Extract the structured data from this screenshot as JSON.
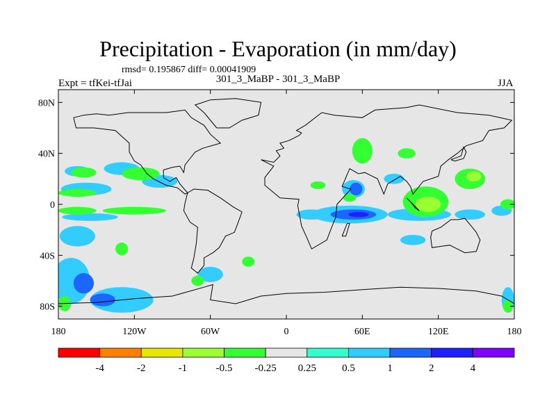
{
  "title": "Precipitation - Evaporation (in mm/day)",
  "stats_text": "rmsd= 0.195867 diff= 0.00041909",
  "subtitle": "301_3_MaBP - 301_3_MaBP",
  "experiment": "Expt = tfKei-tfJai",
  "season": "JJA",
  "chart_data": {
    "type": "heatmap",
    "title": "Precipitation - Evaporation (in mm/day)",
    "x_axis": {
      "range": [
        -180,
        180
      ],
      "ticks": [
        -180,
        -120,
        -60,
        0,
        60,
        120,
        180
      ],
      "tick_labels": [
        "180",
        "120W",
        "60W",
        "0",
        "60E",
        "120E",
        "180"
      ]
    },
    "y_axis": {
      "range": [
        -90,
        90
      ],
      "ticks": [
        80,
        40,
        0,
        -40,
        -80
      ],
      "tick_labels": [
        "80N",
        "40N",
        "0",
        "40S",
        "80S"
      ]
    },
    "colorbar": {
      "labels": [
        "-4",
        "-2",
        "-1",
        "-0.5",
        "-0.25",
        "0.25",
        "0.5",
        "1",
        "2",
        "4"
      ],
      "colors": [
        "#ff0000",
        "#ff8000",
        "#e6e600",
        "#99ff33",
        "#33ff33",
        "#e6e6e6",
        "#33ffcc",
        "#33ccff",
        "#1a66ff",
        "#2020ff",
        "#8000ff"
      ]
    },
    "background_color": "#e6e6e6",
    "anomalies": [
      {
        "lon": -158,
        "lat": 12,
        "rlon": 20,
        "rlat": 5,
        "level": "0.5"
      },
      {
        "lon": -100,
        "lat": 18,
        "rlon": 14,
        "rlat": 5,
        "level": "0.5"
      },
      {
        "lon": -130,
        "lat": 28,
        "rlon": 14,
        "rlat": 5,
        "level": "0.5"
      },
      {
        "lon": -165,
        "lat": 26,
        "rlon": 10,
        "rlat": 4,
        "level": "0.5"
      },
      {
        "lon": -155,
        "lat": -10,
        "rlon": 22,
        "rlat": 3,
        "level": "0.5"
      },
      {
        "lon": -165,
        "lat": -25,
        "rlon": 14,
        "rlat": 8,
        "level": "0.5"
      },
      {
        "lon": -170,
        "lat": -60,
        "rlon": 15,
        "rlat": 18,
        "level": "0.5"
      },
      {
        "lon": -130,
        "lat": -75,
        "rlon": 25,
        "rlat": 10,
        "level": "0.5"
      },
      {
        "lon": -60,
        "lat": -55,
        "rlon": 10,
        "rlat": 6,
        "level": "0.5"
      },
      {
        "lon": 50,
        "lat": -8,
        "rlon": 30,
        "rlat": 7,
        "level": "0.5"
      },
      {
        "lon": 20,
        "lat": -8,
        "rlon": 12,
        "rlat": 4,
        "level": "0.5"
      },
      {
        "lon": 53,
        "lat": 12,
        "rlon": 9,
        "rlat": 7,
        "level": "0.5"
      },
      {
        "lon": 105,
        "lat": -8,
        "rlon": 25,
        "rlat": 5,
        "level": "0.5"
      },
      {
        "lon": 145,
        "lat": -8,
        "rlon": 12,
        "rlat": 4,
        "level": "0.5"
      },
      {
        "lon": 170,
        "lat": -5,
        "rlon": 8,
        "rlat": 4,
        "level": "0.5"
      },
      {
        "lon": 100,
        "lat": -28,
        "rlon": 10,
        "rlat": 4,
        "level": "0.5"
      },
      {
        "lon": 85,
        "lat": 20,
        "rlon": 8,
        "rlat": 4,
        "level": "0.5"
      },
      {
        "lon": 175,
        "lat": -75,
        "rlon": 5,
        "rlat": 10,
        "level": "0.5"
      },
      {
        "lon": -160,
        "lat": -62,
        "rlon": 8,
        "rlat": 8,
        "level": "1"
      },
      {
        "lon": -145,
        "lat": -75,
        "rlon": 10,
        "rlat": 5,
        "level": "1"
      },
      {
        "lon": 53,
        "lat": -8,
        "rlon": 18,
        "rlat": 4,
        "level": "1"
      },
      {
        "lon": 55,
        "lat": 12,
        "rlon": 5,
        "rlat": 5,
        "level": "1"
      },
      {
        "lon": 57,
        "lat": -8,
        "rlon": 8,
        "rlat": 2,
        "level": "2"
      },
      {
        "lon": -165,
        "lat": 9,
        "rlon": 15,
        "rlat": 3,
        "level": "-0.25"
      },
      {
        "lon": -115,
        "lat": 24,
        "rlon": 15,
        "rlat": 5,
        "level": "-0.25"
      },
      {
        "lon": -160,
        "lat": 25,
        "rlon": 10,
        "rlat": 4,
        "level": "-0.25"
      },
      {
        "lon": -120,
        "lat": -5,
        "rlon": 25,
        "rlat": 3,
        "level": "-0.25"
      },
      {
        "lon": -165,
        "lat": -5,
        "rlon": 15,
        "rlat": 3,
        "level": "-0.25"
      },
      {
        "lon": -130,
        "lat": -35,
        "rlon": 5,
        "rlat": 5,
        "level": "-0.25"
      },
      {
        "lon": -175,
        "lat": -78,
        "rlon": 5,
        "rlat": 6,
        "level": "-0.25"
      },
      {
        "lon": -30,
        "lat": -45,
        "rlon": 5,
        "rlat": 4,
        "level": "-0.25"
      },
      {
        "lon": -70,
        "lat": -60,
        "rlon": 5,
        "rlat": 4,
        "level": "-0.25"
      },
      {
        "lon": 25,
        "lat": 15,
        "rlon": 6,
        "rlat": 3,
        "level": "-0.25"
      },
      {
        "lon": 60,
        "lat": 42,
        "rlon": 8,
        "rlat": 10,
        "level": "-0.25"
      },
      {
        "lon": 95,
        "lat": 40,
        "rlon": 7,
        "rlat": 4,
        "level": "-0.25"
      },
      {
        "lon": 110,
        "lat": 2,
        "rlon": 18,
        "rlat": 12,
        "level": "-0.25"
      },
      {
        "lon": 145,
        "lat": 20,
        "rlon": 12,
        "rlat": 8,
        "level": "-0.25"
      },
      {
        "lon": 175,
        "lat": 0,
        "rlon": 6,
        "rlat": 4,
        "level": "-0.25"
      },
      {
        "lon": 50,
        "lat": 5,
        "rlon": 5,
        "rlat": 3,
        "level": "-0.25"
      },
      {
        "lon": 175,
        "lat": -80,
        "rlon": 4,
        "rlat": 5,
        "level": "-0.25"
      },
      {
        "lon": 112,
        "lat": 0,
        "rlon": 10,
        "rlat": 6,
        "level": "-0.5"
      },
      {
        "lon": 148,
        "lat": 22,
        "rlon": 6,
        "rlat": 4,
        "level": "-0.5"
      }
    ],
    "coastlines": [
      [
        [
          -20,
          35
        ],
        [
          -10,
          33
        ],
        [
          -5,
          38
        ],
        [
          -8,
          42
        ],
        [
          -2,
          44
        ],
        [
          -5,
          48
        ],
        [
          2,
          50
        ],
        [
          10,
          54
        ],
        [
          12,
          56
        ],
        [
          8,
          58
        ],
        [
          15,
          62
        ],
        [
          28,
          72
        ],
        [
          38,
          70
        ],
        [
          60,
          68
        ],
        [
          70,
          74
        ],
        [
          95,
          76
        ],
        [
          105,
          78
        ],
        [
          135,
          72
        ],
        [
          160,
          70
        ],
        [
          178,
          66
        ],
        [
          172,
          60
        ],
        [
          160,
          58
        ],
        [
          155,
          50
        ],
        [
          142,
          46
        ],
        [
          135,
          40
        ],
        [
          128,
          35
        ],
        [
          122,
          30
        ],
        [
          120,
          22
        ],
        [
          108,
          18
        ],
        [
          100,
          8
        ],
        [
          98,
          14
        ],
        [
          95,
          18
        ],
        [
          90,
          22
        ],
        [
          80,
          16
        ],
        [
          77,
          8
        ],
        [
          72,
          20
        ],
        [
          62,
          25
        ],
        [
          57,
          24
        ],
        [
          50,
          28
        ],
        [
          44,
          14
        ],
        [
          51,
          12
        ],
        [
          40,
          0
        ],
        [
          39,
          -10
        ],
        [
          35,
          -20
        ],
        [
          32,
          -28
        ],
        [
          20,
          -35
        ],
        [
          17,
          -28
        ],
        [
          12,
          -17
        ],
        [
          9,
          -1
        ],
        [
          10,
          4
        ],
        [
          -5,
          5
        ],
        [
          -17,
          15
        ],
        [
          -17,
          21
        ],
        [
          -10,
          30
        ],
        [
          -20,
          35
        ]
      ],
      [
        [
          -168,
          68
        ],
        [
          -160,
          70
        ],
        [
          -150,
          71
        ],
        [
          -140,
          70
        ],
        [
          -125,
          72
        ],
        [
          -110,
          72
        ],
        [
          -95,
          72
        ],
        [
          -80,
          74
        ],
        [
          -75,
          68
        ],
        [
          -65,
          62
        ],
        [
          -60,
          55
        ],
        [
          -52,
          48
        ],
        [
          -66,
          44
        ],
        [
          -72,
          41
        ],
        [
          -76,
          36
        ],
        [
          -80,
          31
        ],
        [
          -81,
          25
        ],
        [
          -84,
          30
        ],
        [
          -90,
          29
        ],
        [
          -97,
          27
        ],
        [
          -97,
          21
        ],
        [
          -92,
          18
        ],
        [
          -87,
          21
        ],
        [
          -84,
          16
        ],
        [
          -78,
          9
        ],
        [
          -80,
          8
        ],
        [
          -86,
          13
        ],
        [
          -95,
          15
        ],
        [
          -105,
          20
        ],
        [
          -110,
          24
        ],
        [
          -115,
          31
        ],
        [
          -120,
          34
        ],
        [
          -124,
          41
        ],
        [
          -124,
          48
        ],
        [
          -135,
          58
        ],
        [
          -152,
          60
        ],
        [
          -166,
          60
        ],
        [
          -168,
          68
        ]
      ],
      [
        [
          -78,
          9
        ],
        [
          -73,
          12
        ],
        [
          -62,
          11
        ],
        [
          -52,
          5
        ],
        [
          -42,
          -2
        ],
        [
          -35,
          -6
        ],
        [
          -38,
          -14
        ],
        [
          -41,
          -22
        ],
        [
          -48,
          -25
        ],
        [
          -53,
          -34
        ],
        [
          -58,
          -38
        ],
        [
          -65,
          -42
        ],
        [
          -65,
          -48
        ],
        [
          -70,
          -54
        ],
        [
          -75,
          -50
        ],
        [
          -73,
          -42
        ],
        [
          -71,
          -30
        ],
        [
          -70,
          -18
        ],
        [
          -76,
          -14
        ],
        [
          -81,
          -5
        ],
        [
          -80,
          1
        ],
        [
          -78,
          9
        ]
      ],
      [
        [
          115,
          -21
        ],
        [
          122,
          -18
        ],
        [
          130,
          -12
        ],
        [
          136,
          -12
        ],
        [
          141,
          -11
        ],
        [
          146,
          -17
        ],
        [
          150,
          -22
        ],
        [
          153,
          -28
        ],
        [
          150,
          -37
        ],
        [
          141,
          -38
        ],
        [
          135,
          -35
        ],
        [
          129,
          -32
        ],
        [
          115,
          -34
        ],
        [
          114,
          -26
        ],
        [
          115,
          -21
        ]
      ],
      [
        [
          -180,
          -78
        ],
        [
          -150,
          -77
        ],
        [
          -120,
          -74
        ],
        [
          -90,
          -72
        ],
        [
          -65,
          -65
        ],
        [
          -58,
          -63
        ],
        [
          -60,
          -75
        ],
        [
          -40,
          -78
        ],
        [
          -20,
          -72
        ],
        [
          0,
          -70
        ],
        [
          30,
          -69
        ],
        [
          60,
          -67
        ],
        [
          90,
          -65
        ],
        [
          120,
          -66
        ],
        [
          150,
          -68
        ],
        [
          170,
          -72
        ],
        [
          180,
          -78
        ]
      ],
      [
        [
          -55,
          60
        ],
        [
          -45,
          60
        ],
        [
          -35,
          66
        ],
        [
          -22,
          70
        ],
        [
          -20,
          80
        ],
        [
          -40,
          83
        ],
        [
          -60,
          82
        ],
        [
          -72,
          78
        ],
        [
          -65,
          72
        ],
        [
          -55,
          60
        ]
      ],
      [
        [
          44,
          -25
        ],
        [
          48,
          -15
        ],
        [
          50,
          -15
        ],
        [
          47,
          -25
        ],
        [
          44,
          -25
        ]
      ],
      [
        [
          95,
          5
        ],
        [
          100,
          0
        ],
        [
          105,
          -5
        ],
        [
          102,
          -3
        ],
        [
          98,
          2
        ],
        [
          95,
          5
        ]
      ],
      [
        [
          130,
          35
        ],
        [
          133,
          34
        ],
        [
          140,
          36
        ],
        [
          142,
          41
        ],
        [
          140,
          45
        ],
        [
          138,
          38
        ],
        [
          130,
          35
        ]
      ]
    ]
  }
}
